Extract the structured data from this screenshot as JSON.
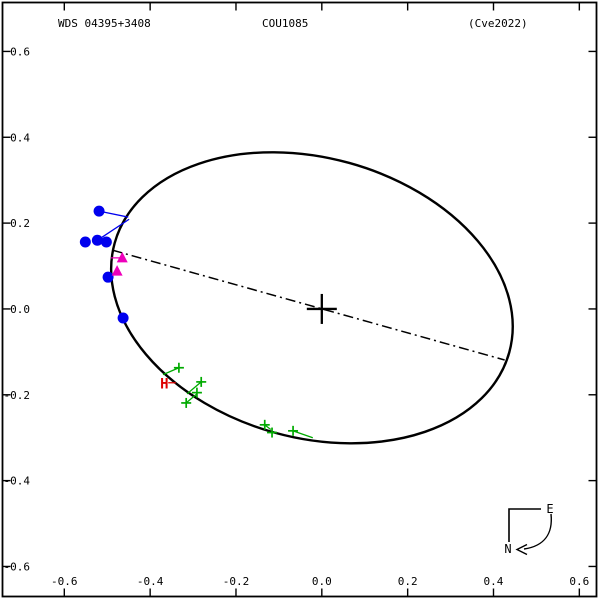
{
  "header": {
    "wds_label": "WDS 04395+3408",
    "system_label": "COU1085",
    "reference_label": "(Cve2022)"
  },
  "colors": {
    "black": "#000000",
    "background": "#FFFFFF",
    "blue": "#0000EE",
    "magenta": "#EE00BB",
    "green": "#00AA00",
    "red": "#DD0000"
  },
  "chart_data": {
    "type": "scatter",
    "title": "WDS 04395+3408",
    "subtitle": "COU1085",
    "annotation": "(Cve2022)",
    "xlabel": "",
    "ylabel": "",
    "grid": false,
    "legend": "none",
    "xlim": [
      -0.744,
      0.64
    ],
    "ylim": [
      -0.67,
      0.714
    ],
    "x_tick_values": [
      -0.6,
      -0.4,
      -0.2,
      0,
      0.2,
      0.4,
      0.6
    ],
    "x_tick_labels": [
      "-0.6",
      "-0.4",
      "-0.2",
      "0.0",
      "0.2",
      "0.4",
      "0.6"
    ],
    "y_tick_values": [
      0.6,
      0.4,
      0.2,
      0,
      -0.2,
      -0.4,
      -0.6
    ],
    "y_tick_labels": [
      "0.6",
      "0.4",
      "0.2",
      "0.0",
      "-0.2",
      "-0.4",
      "-0.6"
    ],
    "orbit_ellipse": {
      "cx": -0.023,
      "cy": 0.026,
      "semi_major": 0.477,
      "semi_minor": 0.326,
      "rotation_deg": 15.5
    },
    "apsides_line": {
      "style": "dash-dot",
      "x1": -0.488,
      "y1": 0.137,
      "x2": 0.426,
      "y2": -0.119
    },
    "primary_marker": {
      "symbol": "plus",
      "x": 0.0,
      "y": 0.0
    },
    "series": [
      {
        "name": "blue-filled-circle-observations",
        "marker": "filled-circle",
        "color_key": "blue",
        "points": [
          [
            -0.519,
            0.228
          ],
          [
            -0.551,
            0.156
          ],
          [
            -0.523,
            0.16
          ],
          [
            -0.502,
            0.156
          ],
          [
            -0.498,
            0.074
          ],
          [
            -0.463,
            -0.021
          ]
        ]
      },
      {
        "name": "magenta-triangle-observations",
        "marker": "filled-triangle",
        "color_key": "magenta",
        "points": [
          [
            -0.465,
            0.119
          ],
          [
            -0.477,
            0.088
          ]
        ]
      },
      {
        "name": "green-cross-observations",
        "marker": "plus-cross",
        "color_key": "green",
        "points": [
          [
            -0.333,
            -0.137
          ],
          [
            -0.281,
            -0.17
          ],
          [
            -0.291,
            -0.195
          ],
          [
            -0.316,
            -0.219
          ],
          [
            -0.133,
            -0.27
          ],
          [
            -0.116,
            -0.288
          ],
          [
            -0.067,
            -0.284
          ]
        ]
      },
      {
        "name": "hipparcos-observation",
        "marker": "text",
        "text": "H",
        "color_key": "red",
        "points": [
          [
            -0.367,
            -0.174
          ]
        ]
      }
    ],
    "residual_segments": [
      {
        "color": "blue",
        "x1": -0.519,
        "y1": 0.228,
        "x2": -0.451,
        "y2": 0.214
      },
      {
        "color": "blue",
        "x1": -0.523,
        "y1": 0.16,
        "x2": -0.449,
        "y2": 0.209
      },
      {
        "color": "magenta",
        "x1": -0.491,
        "y1": 0.119,
        "x2": -0.467,
        "y2": 0.119
      },
      {
        "color": "green",
        "x1": -0.333,
        "y1": -0.137,
        "x2": -0.37,
        "y2": -0.153
      },
      {
        "color": "green",
        "x1": -0.281,
        "y1": -0.17,
        "x2": -0.314,
        "y2": -0.198
      },
      {
        "color": "green",
        "x1": -0.316,
        "y1": -0.219,
        "x2": -0.291,
        "y2": -0.198
      },
      {
        "color": "green",
        "x1": -0.133,
        "y1": -0.27,
        "x2": -0.119,
        "y2": -0.281
      },
      {
        "color": "green",
        "x1": -0.067,
        "y1": -0.284,
        "x2": -0.021,
        "y2": -0.3
      },
      {
        "color": "red",
        "x1": -0.358,
        "y1": -0.172,
        "x2": -0.34,
        "y2": -0.172
      }
    ],
    "compass": {
      "east_label": "E",
      "north_label": "N"
    }
  }
}
